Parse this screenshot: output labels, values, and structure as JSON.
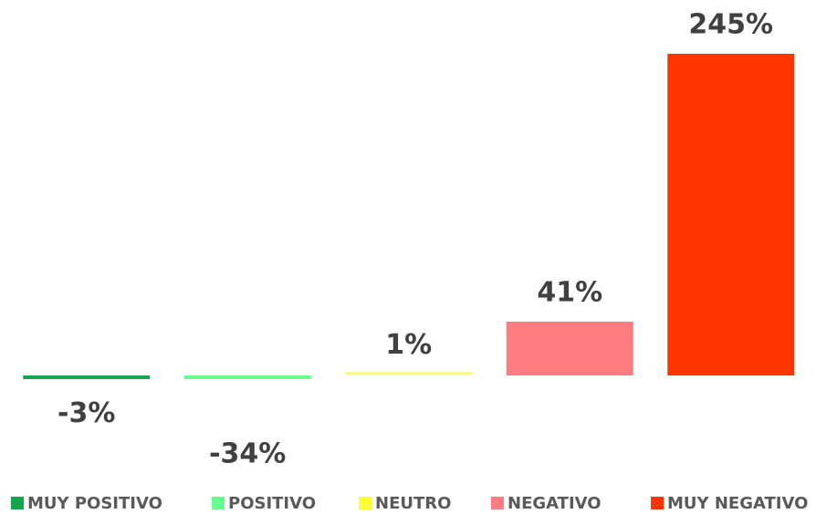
{
  "chart_data": {
    "type": "bar",
    "categories": [
      "MUY POSITIVO",
      "POSITIVO",
      "NEUTRO",
      "NEGATIVO",
      "MUY NEGATIVO"
    ],
    "values": [
      -3,
      -34,
      1,
      41,
      245
    ],
    "value_labels": [
      "-3%",
      "-34%",
      "1%",
      "41%",
      "245%"
    ],
    "colors": [
      "#12a650",
      "#66ff8f",
      "#ffff33",
      "#ff7c80",
      "#ff3500"
    ],
    "legend": "bottom"
  }
}
